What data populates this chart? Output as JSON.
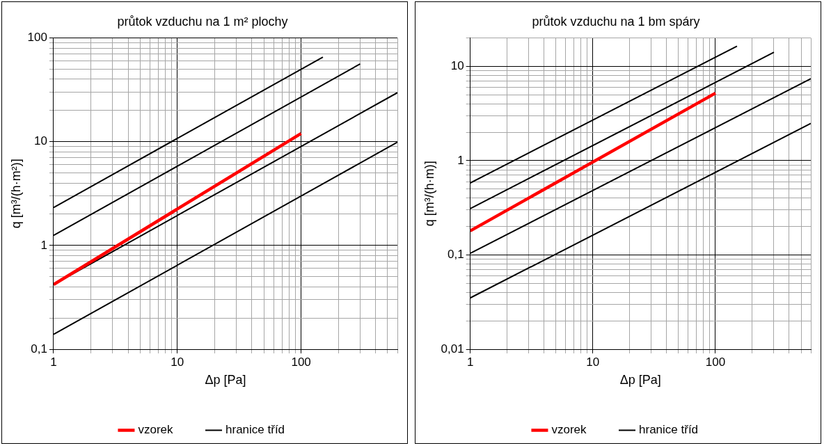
{
  "chart_data": [
    {
      "type": "line",
      "title": "průtok vzduchu na 1 m² plochy",
      "xlabel": "Δp [Pa]",
      "ylabel": "q [m³/(h·m²)]",
      "log": "xy",
      "grid": true,
      "legend": "bottom",
      "marker": "none",
      "line_style": "solid",
      "xlim": [
        1,
        600
      ],
      "xticks": [
        1,
        {
          "value": 2,
          "label": null
        },
        {
          "value": 3,
          "label": null
        },
        {
          "value": 4,
          "label": null
        },
        {
          "value": 5,
          "label": null
        },
        {
          "value": 6,
          "label": null
        },
        {
          "value": 7,
          "label": null
        },
        {
          "value": 8,
          "label": null
        },
        {
          "value": 9,
          "label": null
        },
        10,
        {
          "value": 20,
          "label": null
        },
        {
          "value": 30,
          "label": null
        },
        {
          "value": 40,
          "label": null
        },
        {
          "value": 50,
          "label": null
        },
        {
          "value": 60,
          "label": null
        },
        {
          "value": 70,
          "label": null
        },
        {
          "value": 80,
          "label": null
        },
        {
          "value": 90,
          "label": null
        },
        100,
        {
          "value": 200,
          "label": null
        },
        {
          "value": 300,
          "label": null
        },
        {
          "value": 400,
          "label": null
        },
        {
          "value": 500,
          "label": null
        },
        {
          "value": 600,
          "label": null
        }
      ],
      "ylim": [
        0.1,
        100
      ],
      "yticks": [
        {
          "value": 0.1,
          "label": "0,1"
        },
        {
          "value": 0.2,
          "label": null
        },
        {
          "value": 0.3,
          "label": null
        },
        {
          "value": 0.4,
          "label": null
        },
        {
          "value": 0.5,
          "label": null
        },
        {
          "value": 0.6,
          "label": null
        },
        {
          "value": 0.7,
          "label": null
        },
        {
          "value": 0.8,
          "label": null
        },
        {
          "value": 0.9,
          "label": null
        },
        1,
        {
          "value": 2,
          "label": null
        },
        {
          "value": 3,
          "label": null
        },
        {
          "value": 4,
          "label": null
        },
        {
          "value": 5,
          "label": null
        },
        {
          "value": 6,
          "label": null
        },
        {
          "value": 7,
          "label": null
        },
        {
          "value": 8,
          "label": null
        },
        {
          "value": 9,
          "label": null
        },
        10,
        {
          "value": 20,
          "label": null
        },
        {
          "value": 30,
          "label": null
        },
        {
          "value": 40,
          "label": null
        },
        {
          "value": 50,
          "label": null
        },
        {
          "value": 60,
          "label": null
        },
        {
          "value": 70,
          "label": null
        },
        {
          "value": 80,
          "label": null
        },
        {
          "value": 90,
          "label": null
        },
        100
      ],
      "series": [
        {
          "name": "vzorek",
          "color": "#ff0000",
          "x": [
            1,
            100
          ],
          "values": [
            0.42,
            12
          ]
        },
        {
          "name": "hranice tříd",
          "color": "#000000",
          "x": [
            1,
            150
          ],
          "values": [
            2.32,
            65.5
          ]
        },
        {
          "color": "#000000",
          "x": [
            1,
            300
          ],
          "values": [
            1.25,
            56.2
          ]
        },
        {
          "color": "#000000",
          "x": [
            1,
            600
          ],
          "values": [
            0.42,
            29.7
          ]
        },
        {
          "color": "#000000",
          "x": [
            1,
            600
          ],
          "values": [
            0.139,
            9.9
          ]
        }
      ]
    },
    {
      "type": "line",
      "title": "průtok vzduchu na 1 bm spáry",
      "xlabel": "Δp [Pa]",
      "ylabel": "q [m³/(h·m)]",
      "log": "xy",
      "grid": true,
      "legend": "bottom",
      "marker": "none",
      "line_style": "solid",
      "xlim": [
        1,
        600
      ],
      "xticks": [
        1,
        {
          "value": 2,
          "label": null
        },
        {
          "value": 3,
          "label": null
        },
        {
          "value": 4,
          "label": null
        },
        {
          "value": 5,
          "label": null
        },
        {
          "value": 6,
          "label": null
        },
        {
          "value": 7,
          "label": null
        },
        {
          "value": 8,
          "label": null
        },
        {
          "value": 9,
          "label": null
        },
        10,
        {
          "value": 20,
          "label": null
        },
        {
          "value": 30,
          "label": null
        },
        {
          "value": 40,
          "label": null
        },
        {
          "value": 50,
          "label": null
        },
        {
          "value": 60,
          "label": null
        },
        {
          "value": 70,
          "label": null
        },
        {
          "value": 80,
          "label": null
        },
        {
          "value": 90,
          "label": null
        },
        100,
        {
          "value": 200,
          "label": null
        },
        {
          "value": 300,
          "label": null
        },
        {
          "value": 400,
          "label": null
        },
        {
          "value": 500,
          "label": null
        },
        {
          "value": 600,
          "label": null
        }
      ],
      "ylim": [
        0.01,
        20
      ],
      "yticks": [
        {
          "value": 0.01,
          "label": "0,01"
        },
        {
          "value": 0.02,
          "label": null
        },
        {
          "value": 0.03,
          "label": null
        },
        {
          "value": 0.04,
          "label": null
        },
        {
          "value": 0.05,
          "label": null
        },
        {
          "value": 0.06,
          "label": null
        },
        {
          "value": 0.07,
          "label": null
        },
        {
          "value": 0.08,
          "label": null
        },
        {
          "value": 0.09,
          "label": null
        },
        {
          "value": 0.1,
          "label": "0,1"
        },
        {
          "value": 0.2,
          "label": null
        },
        {
          "value": 0.3,
          "label": null
        },
        {
          "value": 0.4,
          "label": null
        },
        {
          "value": 0.5,
          "label": null
        },
        {
          "value": 0.6,
          "label": null
        },
        {
          "value": 0.7,
          "label": null
        },
        {
          "value": 0.8,
          "label": null
        },
        {
          "value": 0.9,
          "label": null
        },
        1,
        {
          "value": 2,
          "label": null
        },
        {
          "value": 3,
          "label": null
        },
        {
          "value": 4,
          "label": null
        },
        {
          "value": 5,
          "label": null
        },
        {
          "value": 6,
          "label": null
        },
        {
          "value": 7,
          "label": null
        },
        {
          "value": 8,
          "label": null
        },
        {
          "value": 9,
          "label": null
        },
        10,
        {
          "value": 20,
          "label": null
        }
      ],
      "series": [
        {
          "name": "vzorek",
          "color": "#ff0000",
          "x": [
            1,
            100
          ],
          "values": [
            0.18,
            5.2
          ]
        },
        {
          "name": "hranice tříd",
          "color": "#000000",
          "x": [
            1,
            150
          ],
          "values": [
            0.58,
            16.4
          ]
        },
        {
          "color": "#000000",
          "x": [
            1,
            300
          ],
          "values": [
            0.31,
            14.1
          ]
        },
        {
          "color": "#000000",
          "x": [
            1,
            600
          ],
          "values": [
            0.104,
            7.4
          ]
        },
        {
          "color": "#000000",
          "x": [
            1,
            600
          ],
          "values": [
            0.035,
            2.48
          ]
        }
      ]
    }
  ]
}
